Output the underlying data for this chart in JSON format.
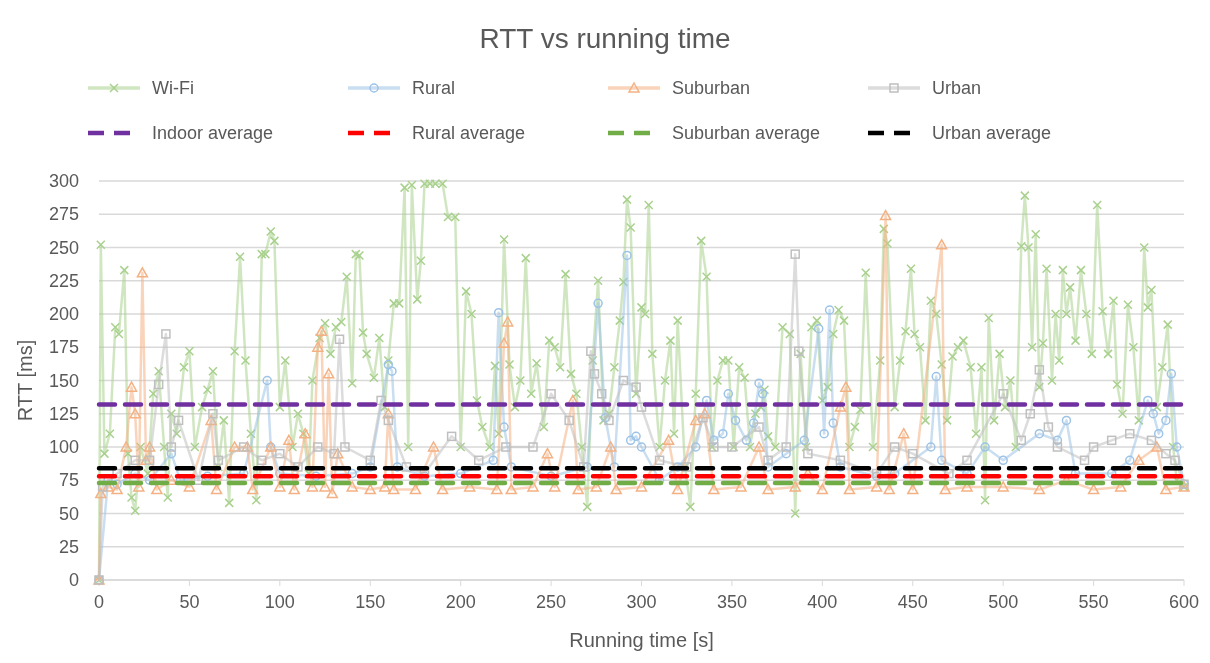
{
  "chart_data": {
    "type": "line",
    "title": "RTT vs running time",
    "xlabel": "Running time [s]",
    "ylabel": "RTT [ms]",
    "xlim": [
      0,
      600
    ],
    "xticks": [
      0,
      50,
      100,
      150,
      200,
      250,
      300,
      350,
      400,
      450,
      500,
      550,
      600
    ],
    "ylim": [
      0,
      300
    ],
    "yticks": [
      0,
      25,
      50,
      75,
      100,
      125,
      150,
      175,
      200,
      225,
      250,
      275,
      300
    ],
    "grid": "y",
    "legend": "top",
    "series": [
      {
        "name": "Wi-Fi",
        "color": "#a9d18e",
        "marker": "cross",
        "x": [
          0,
          1,
          3,
          6,
          9,
          11,
          14,
          16,
          18,
          20,
          23,
          27,
          30,
          33,
          36,
          38,
          40,
          43,
          47,
          50,
          53,
          57,
          60,
          63,
          66,
          69,
          72,
          75,
          78,
          81,
          84,
          87,
          90,
          92,
          95,
          97,
          100,
          103,
          107,
          110,
          113,
          116,
          118,
          122,
          125,
          128,
          131,
          134,
          137,
          140,
          142,
          144,
          146,
          148,
          152,
          155,
          158,
          160,
          163,
          166,
          169,
          171,
          173,
          176,
          178,
          180,
          183,
          186,
          190,
          193,
          197,
          200,
          203,
          206,
          209,
          212,
          216,
          219,
          221,
          224,
          227,
          230,
          233,
          236,
          239,
          242,
          246,
          249,
          252,
          255,
          258,
          261,
          264,
          267,
          270,
          273,
          276,
          279,
          282,
          285,
          288,
          290,
          292,
          294,
          297,
          300,
          302,
          304,
          306,
          310,
          313,
          316,
          318,
          320,
          324,
          327,
          330,
          333,
          336,
          339,
          342,
          345,
          348,
          351,
          354,
          357,
          360,
          363,
          366,
          368,
          370,
          374,
          378,
          382,
          385,
          388,
          391,
          394,
          397,
          400,
          403,
          406,
          409,
          412,
          415,
          418,
          421,
          424,
          428,
          432,
          434,
          436,
          440,
          443,
          446,
          449,
          451,
          454,
          457,
          460,
          463,
          466,
          469,
          472,
          475,
          478,
          482,
          485,
          488,
          490,
          492,
          495,
          498,
          501,
          504,
          507,
          510,
          512,
          514,
          516,
          518,
          520,
          522,
          524,
          527,
          529,
          531,
          533,
          535,
          537,
          540,
          543,
          546,
          549,
          552,
          555,
          558,
          561,
          563,
          566,
          569,
          572,
          575,
          578,
          580,
          582,
          585,
          588,
          591,
          594,
          596,
          600
        ],
        "values": [
          0,
          252,
          95,
          110,
          190,
          185,
          233,
          95,
          62,
          52,
          100,
          80,
          140,
          157,
          100,
          62,
          125,
          110,
          160,
          172,
          100,
          130,
          143,
          157,
          85,
          120,
          58,
          172,
          243,
          165,
          110,
          60,
          245,
          245,
          262,
          255,
          130,
          165,
          100,
          125,
          110,
          80,
          150,
          182,
          193,
          170,
          190,
          194,
          228,
          148,
          245,
          244,
          186,
          170,
          152,
          182,
          130,
          165,
          208,
          208,
          295,
          100,
          297,
          211,
          240,
          298,
          298,
          298,
          298,
          273,
          273,
          100,
          217,
          200,
          135,
          115,
          100,
          161,
          110,
          256,
          162,
          130,
          150,
          242,
          140,
          163,
          115,
          180,
          175,
          160,
          230,
          155,
          140,
          100,
          55,
          165,
          225,
          120,
          125,
          160,
          195,
          224,
          286,
          265,
          140,
          205,
          200,
          282,
          170,
          100,
          150,
          180,
          110,
          195,
          85,
          55,
          140,
          255,
          228,
          100,
          150,
          165,
          165,
          100,
          160,
          152,
          100,
          125,
          130,
          143,
          108,
          100,
          190,
          185,
          50,
          170,
          100,
          190,
          195,
          135,
          145,
          185,
          203,
          195,
          100,
          115,
          128,
          231,
          100,
          165,
          264,
          253,
          130,
          165,
          187,
          234,
          185,
          175,
          120,
          210,
          200,
          162,
          120,
          168,
          175,
          180,
          160,
          110,
          160,
          60,
          197,
          120,
          170,
          130,
          150,
          100,
          251,
          289,
          250,
          175,
          260,
          145,
          178,
          234,
          150,
          200,
          165,
          233,
          200,
          220,
          180,
          233,
          200,
          170,
          282,
          202,
          170,
          210,
          147,
          125,
          207,
          175,
          120,
          250,
          205,
          218,
          130,
          160,
          192,
          100,
          75,
          70
        ]
      },
      {
        "name": "Rural",
        "color": "#9dc3e6",
        "marker": "circle",
        "x": [
          0,
          5,
          10,
          20,
          28,
          40,
          45,
          60,
          80,
          93,
          95,
          100,
          120,
          140,
          150,
          160,
          162,
          165,
          180,
          200,
          218,
          221,
          224,
          228,
          250,
          270,
          276,
          280,
          285,
          292,
          294,
          297,
          300,
          310,
          320,
          330,
          336,
          340,
          345,
          348,
          352,
          358,
          362,
          365,
          367,
          370,
          380,
          390,
          398,
          401,
          404,
          406,
          410,
          430,
          440,
          460,
          463,
          466,
          480,
          490,
          500,
          520,
          530,
          535,
          540,
          560,
          570,
          580,
          583,
          586,
          590,
          593,
          596,
          600
        ],
        "values": [
          0,
          75,
          72,
          80,
          75,
          95,
          75,
          78,
          80,
          150,
          100,
          80,
          78,
          80,
          85,
          162,
          157,
          85,
          78,
          80,
          90,
          201,
          115,
          85,
          78,
          85,
          208,
          122,
          85,
          244,
          105,
          108,
          100,
          75,
          85,
          100,
          135,
          105,
          110,
          140,
          120,
          105,
          118,
          148,
          140,
          85,
          95,
          105,
          189,
          110,
          203,
          118,
          85,
          78,
          80,
          100,
          153,
          90,
          80,
          100,
          90,
          110,
          105,
          120,
          80,
          80,
          90,
          135,
          125,
          110,
          120,
          155,
          100,
          72
        ]
      },
      {
        "name": "Suburban",
        "color": "#f4b183",
        "marker": "triangle",
        "x": [
          0,
          1,
          5,
          10,
          15,
          18,
          20,
          22,
          24,
          26,
          28,
          32,
          40,
          50,
          62,
          65,
          75,
          82,
          85,
          95,
          100,
          105,
          108,
          114,
          118,
          121,
          123,
          125,
          127,
          129,
          132,
          140,
          150,
          158,
          160,
          163,
          175,
          185,
          190,
          205,
          220,
          224,
          226,
          228,
          240,
          248,
          252,
          262,
          265,
          275,
          283,
          286,
          300,
          315,
          320,
          330,
          335,
          340,
          355,
          365,
          370,
          385,
          392,
          400,
          410,
          413,
          415,
          430,
          435,
          437,
          445,
          450,
          466,
          468,
          480,
          500,
          520,
          535,
          550,
          565,
          575,
          585,
          590,
          600
        ],
        "values": [
          0,
          65,
          70,
          68,
          100,
          145,
          125,
          70,
          231,
          90,
          100,
          68,
          75,
          70,
          120,
          68,
          100,
          100,
          68,
          100,
          70,
          105,
          68,
          110,
          70,
          175,
          187,
          70,
          155,
          65,
          95,
          70,
          68,
          70,
          125,
          68,
          68,
          100,
          68,
          70,
          68,
          178,
          194,
          68,
          70,
          95,
          70,
          135,
          68,
          70,
          100,
          68,
          70,
          105,
          68,
          120,
          125,
          68,
          70,
          100,
          68,
          70,
          80,
          68,
          130,
          145,
          68,
          70,
          274,
          68,
          110,
          68,
          252,
          68,
          70,
          70,
          68,
          75,
          68,
          70,
          90,
          100,
          68,
          70
        ]
      },
      {
        "name": "Urban",
        "color": "#bfbfbf",
        "marker": "square",
        "x": [
          0,
          2,
          10,
          20,
          28,
          33,
          37,
          40,
          44,
          55,
          63,
          66,
          80,
          90,
          100,
          110,
          121,
          130,
          133,
          136,
          150,
          156,
          160,
          170,
          180,
          195,
          210,
          225,
          240,
          250,
          260,
          268,
          272,
          274,
          278,
          282,
          290,
          297,
          300,
          310,
          325,
          334,
          340,
          350,
          365,
          370,
          380,
          385,
          387,
          392,
          410,
          430,
          440,
          450,
          470,
          480,
          500,
          510,
          515,
          520,
          525,
          530,
          545,
          550,
          560,
          570,
          582,
          590,
          595,
          600
        ],
        "values": [
          0,
          70,
          80,
          90,
          90,
          147,
          185,
          100,
          120,
          75,
          125,
          90,
          100,
          90,
          95,
          85,
          100,
          95,
          181,
          100,
          90,
          135,
          120,
          85,
          80,
          108,
          90,
          100,
          100,
          140,
          120,
          85,
          172,
          155,
          140,
          120,
          150,
          145,
          130,
          90,
          85,
          122,
          100,
          100,
          115,
          90,
          100,
          245,
          172,
          95,
          90,
          80,
          100,
          95,
          80,
          90,
          140,
          105,
          125,
          158,
          115,
          100,
          90,
          100,
          105,
          110,
          105,
          95,
          90,
          72
        ]
      },
      {
        "name": "Indoor average",
        "color": "#7030a0",
        "marker": "none",
        "line_style": "dashed",
        "x": [
          0,
          600
        ],
        "values": [
          132,
          132
        ]
      },
      {
        "name": "Rural average",
        "color": "#ff0000",
        "marker": "none",
        "line_style": "dashed",
        "x": [
          0,
          600
        ],
        "values": [
          78,
          78
        ]
      },
      {
        "name": "Suburban average",
        "color": "#70ad47",
        "marker": "none",
        "line_style": "dashed",
        "x": [
          0,
          600
        ],
        "values": [
          73,
          73
        ]
      },
      {
        "name": "Urban average",
        "color": "#000000",
        "marker": "none",
        "line_style": "dashed",
        "x": [
          0,
          600
        ],
        "values": [
          84,
          84
        ]
      }
    ]
  }
}
